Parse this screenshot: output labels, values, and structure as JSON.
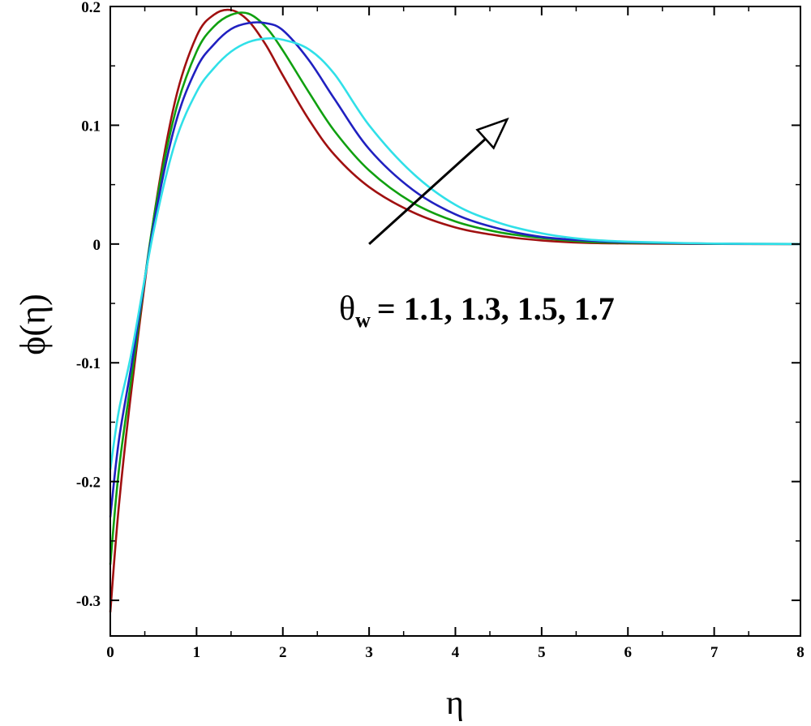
{
  "chart_data": {
    "type": "line",
    "xlabel": "η",
    "ylabel": "ϕ(η)",
    "xlim": [
      0,
      8
    ],
    "ylim": [
      -0.33,
      0.2
    ],
    "x_ticks": [
      0,
      1,
      2,
      3,
      4,
      5,
      6,
      7,
      8
    ],
    "x_tick_labels": [
      "0",
      "1",
      "2",
      "3",
      "4",
      "5",
      "6",
      "7",
      "8"
    ],
    "y_ticks": [
      0.2,
      0.1,
      0,
      -0.1,
      -0.2,
      -0.3
    ],
    "y_tick_labels": [
      "0.2",
      "0.1",
      "0",
      "-0.1",
      "-0.2",
      "-0.3"
    ],
    "grid": false,
    "annotation": {
      "symbol": "θ",
      "subscript": "w",
      "text": "= 1.1, 1.3, 1.5, 1.7",
      "arrow_from": [
        3.0,
        0.0
      ],
      "arrow_to": [
        4.6,
        0.105
      ]
    },
    "series": [
      {
        "color": "#a01010",
        "x": [
          0,
          0.1,
          0.25,
          0.5,
          0.75,
          1.0,
          1.2,
          1.4,
          1.6,
          1.8,
          2.0,
          2.3,
          2.6,
          3.0,
          3.5,
          4.0,
          4.5,
          5.0,
          5.5,
          6.0,
          7.0,
          8.0
        ],
        "y": [
          -0.31,
          -0.22,
          -0.12,
          0.02,
          0.12,
          0.175,
          0.193,
          0.197,
          0.188,
          0.168,
          0.142,
          0.105,
          0.075,
          0.048,
          0.027,
          0.014,
          0.007,
          0.003,
          0.001,
          0.0005,
          0.0001,
          0
        ]
      },
      {
        "color": "#10a010",
        "x": [
          0,
          0.1,
          0.25,
          0.5,
          0.75,
          1.0,
          1.2,
          1.4,
          1.6,
          1.8,
          2.0,
          2.3,
          2.6,
          3.0,
          3.5,
          4.0,
          4.5,
          5.0,
          5.5,
          6.0,
          7.0,
          8.0
        ],
        "y": [
          -0.27,
          -0.19,
          -0.11,
          0.02,
          0.11,
          0.162,
          0.183,
          0.193,
          0.194,
          0.183,
          0.163,
          0.128,
          0.095,
          0.062,
          0.035,
          0.019,
          0.01,
          0.005,
          0.002,
          0.001,
          0.0002,
          0
        ]
      },
      {
        "color": "#2020c0",
        "x": [
          0,
          0.1,
          0.25,
          0.5,
          0.75,
          1.0,
          1.2,
          1.4,
          1.6,
          1.8,
          2.0,
          2.3,
          2.6,
          3.0,
          3.5,
          4.0,
          4.5,
          5.0,
          5.5,
          6.0,
          7.0,
          8.0
        ],
        "y": [
          -0.23,
          -0.165,
          -0.1,
          0.015,
          0.1,
          0.148,
          0.168,
          0.181,
          0.186,
          0.186,
          0.18,
          0.155,
          0.122,
          0.08,
          0.046,
          0.025,
          0.013,
          0.006,
          0.003,
          0.0015,
          0.0003,
          0
        ]
      },
      {
        "color": "#30e0e8",
        "x": [
          0,
          0.1,
          0.25,
          0.5,
          0.75,
          1.0,
          1.2,
          1.4,
          1.6,
          1.8,
          2.0,
          2.3,
          2.6,
          3.0,
          3.5,
          4.0,
          4.5,
          5.0,
          5.5,
          6.0,
          7.0,
          8.0
        ],
        "y": [
          -0.19,
          -0.14,
          -0.09,
          0.01,
          0.085,
          0.128,
          0.148,
          0.162,
          0.17,
          0.173,
          0.172,
          0.164,
          0.143,
          0.1,
          0.06,
          0.033,
          0.018,
          0.009,
          0.004,
          0.002,
          0.0004,
          0
        ]
      }
    ]
  }
}
